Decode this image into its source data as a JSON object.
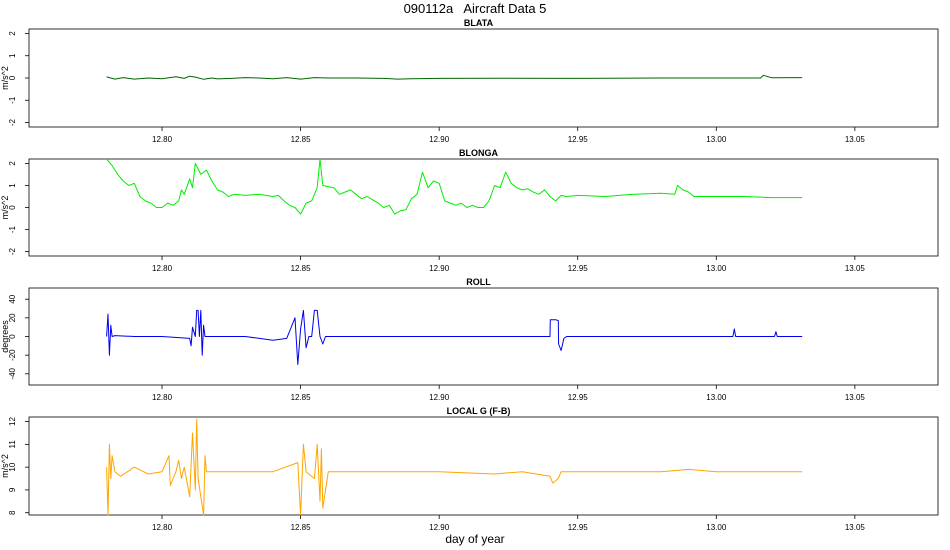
{
  "figure": {
    "title": "090112a   Aircraft Data 5",
    "xlabel": "day of year"
  },
  "chart_data": [
    {
      "type": "line",
      "title": "BLATA",
      "ylabel": "m/s^2",
      "xlim": [
        12.752,
        13.08
      ],
      "ylim": [
        -2.2,
        2.2
      ],
      "xticks": [
        12.8,
        12.85,
        12.9,
        12.95,
        13.0,
        13.05
      ],
      "xtick_labels": [
        "12.80",
        "12.85",
        "12.90",
        "12.95",
        "13.00",
        "13.05"
      ],
      "yticks": [
        -2,
        -1,
        0,
        1,
        2
      ],
      "ytick_labels": [
        "-2",
        "-1",
        "0",
        "1",
        "2"
      ],
      "color": "#006400",
      "series": [
        {
          "x": [
            12.78,
            12.783,
            12.786,
            12.79,
            12.795,
            12.8,
            12.805,
            12.808,
            12.81,
            12.812,
            12.815,
            12.818,
            12.82,
            12.825,
            12.83,
            12.835,
            12.84,
            12.845,
            12.85,
            12.855,
            12.86,
            12.87,
            12.88,
            12.885,
            12.89,
            12.9,
            12.92,
            12.95,
            12.98,
            13.0,
            13.016,
            13.017,
            13.02,
            13.031
          ],
          "y": [
            0.05,
            -0.05,
            0.02,
            -0.05,
            0.0,
            -0.03,
            0.06,
            -0.02,
            0.08,
            0.04,
            -0.06,
            0.0,
            -0.04,
            -0.02,
            0.02,
            0.0,
            -0.03,
            0.02,
            -0.05,
            0.02,
            0.0,
            0.0,
            -0.02,
            -0.05,
            -0.03,
            -0.02,
            -0.01,
            -0.02,
            0.0,
            0.0,
            0.0,
            0.12,
            0.01,
            0.02
          ]
        }
      ]
    },
    {
      "type": "line",
      "title": "BLONGA",
      "ylabel": "m/s^2",
      "xlim": [
        12.752,
        13.08
      ],
      "ylim": [
        -2.2,
        2.2
      ],
      "xticks": [
        12.8,
        12.85,
        12.9,
        12.95,
        13.0,
        13.05
      ],
      "xtick_labels": [
        "12.80",
        "12.85",
        "12.90",
        "12.95",
        "13.00",
        "13.05"
      ],
      "yticks": [
        -2,
        -1,
        0,
        1,
        2
      ],
      "ytick_labels": [
        "-2",
        "-1",
        "0",
        "1",
        "2"
      ],
      "color": "#00ee00",
      "series": [
        {
          "x": [
            12.78,
            12.782,
            12.784,
            12.786,
            12.788,
            12.79,
            12.792,
            12.794,
            12.796,
            12.798,
            12.8,
            12.802,
            12.804,
            12.806,
            12.807,
            12.808,
            12.81,
            12.811,
            12.812,
            12.814,
            12.816,
            12.818,
            12.82,
            12.822,
            12.824,
            12.826,
            12.83,
            12.835,
            12.84,
            12.842,
            12.844,
            12.846,
            12.848,
            12.85,
            12.852,
            12.854,
            12.856,
            12.857,
            12.858,
            12.86,
            12.862,
            12.864,
            12.866,
            12.868,
            12.87,
            12.872,
            12.874,
            12.876,
            12.878,
            12.88,
            12.882,
            12.884,
            12.886,
            12.888,
            12.89,
            12.892,
            12.894,
            12.896,
            12.898,
            12.9,
            12.902,
            12.904,
            12.906,
            12.908,
            12.91,
            12.912,
            12.914,
            12.916,
            12.918,
            12.92,
            12.922,
            12.924,
            12.926,
            12.928,
            12.93,
            12.932,
            12.934,
            12.936,
            12.938,
            12.94,
            12.942,
            12.944,
            12.946,
            12.95,
            12.96,
            12.97,
            12.98,
            12.985,
            12.986,
            12.988,
            12.99,
            12.992,
            12.995,
            13.0,
            13.01,
            13.02,
            13.031
          ],
          "y": [
            2.2,
            1.9,
            1.5,
            1.2,
            1.0,
            1.1,
            0.5,
            0.3,
            0.2,
            0.0,
            0.0,
            0.2,
            0.1,
            0.3,
            0.8,
            0.6,
            1.3,
            0.9,
            2.0,
            1.5,
            1.7,
            1.2,
            0.8,
            0.7,
            0.5,
            0.6,
            0.55,
            0.6,
            0.5,
            0.55,
            0.3,
            0.1,
            0.0,
            -0.3,
            0.2,
            0.3,
            0.9,
            2.2,
            1.0,
            0.95,
            0.9,
            0.6,
            0.7,
            0.8,
            0.6,
            0.4,
            0.5,
            0.35,
            0.2,
            0.0,
            0.1,
            -0.3,
            -0.15,
            -0.1,
            0.4,
            0.6,
            1.6,
            0.9,
            1.2,
            1.1,
            0.3,
            0.2,
            0.1,
            0.2,
            0.0,
            0.1,
            0.0,
            0.0,
            0.3,
            1.0,
            0.9,
            1.6,
            1.1,
            0.9,
            0.8,
            0.85,
            0.7,
            0.6,
            0.8,
            0.5,
            0.3,
            0.55,
            0.5,
            0.55,
            0.5,
            0.6,
            0.65,
            0.6,
            1.0,
            0.8,
            0.7,
            0.5,
            0.5,
            0.5,
            0.5,
            0.45,
            0.45
          ]
        }
      ]
    },
    {
      "type": "line",
      "title": "ROLL",
      "ylabel": "degrees",
      "xlim": [
        12.752,
        13.08
      ],
      "ylim": [
        -52,
        52
      ],
      "xticks": [
        12.8,
        12.85,
        12.9,
        12.95,
        13.0,
        13.05
      ],
      "xtick_labels": [
        "12.80",
        "12.85",
        "12.90",
        "12.95",
        "13.00",
        "13.05"
      ],
      "yticks": [
        -40,
        -20,
        0,
        20,
        40
      ],
      "ytick_labels": [
        "-40",
        "-20",
        "0",
        "20",
        "40"
      ],
      "color": "#0000ee",
      "series": [
        {
          "x": [
            12.78,
            12.7805,
            12.781,
            12.7815,
            12.782,
            12.783,
            12.79,
            12.8,
            12.81,
            12.8105,
            12.811,
            12.812,
            12.8125,
            12.813,
            12.8135,
            12.814,
            12.8145,
            12.815,
            12.8155,
            12.816,
            12.82,
            12.83,
            12.84,
            12.845,
            12.848,
            12.849,
            12.85,
            12.851,
            12.852,
            12.853,
            12.854,
            12.855,
            12.856,
            12.857,
            12.858,
            12.859,
            12.86,
            12.87,
            12.9,
            12.93,
            12.94,
            12.9401,
            12.941,
            12.942,
            12.943,
            12.9431,
            12.944,
            12.945,
            12.946,
            12.95,
            12.98,
            13.0,
            13.006,
            13.0065,
            13.007,
            13.01,
            13.021,
            13.0215,
            13.022,
            13.031
          ],
          "y": [
            0,
            24,
            -20,
            12,
            0,
            1,
            0,
            0,
            -2,
            -10,
            10,
            0,
            28,
            28,
            0,
            28,
            -20,
            12,
            0,
            0,
            0,
            0,
            -4,
            -2,
            20,
            -30,
            8,
            28,
            -12,
            0,
            0,
            28,
            28,
            0,
            -8,
            0,
            0,
            0,
            0,
            0,
            0,
            18,
            18,
            18,
            17,
            -8,
            -15,
            -2,
            0,
            0,
            0,
            0,
            0,
            8,
            0,
            0,
            0,
            5,
            0,
            0
          ]
        }
      ]
    },
    {
      "type": "line",
      "title": "LOCAL G (F-B)",
      "ylabel": "m/s^2",
      "xlim": [
        12.752,
        13.08
      ],
      "ylim": [
        7.9,
        12.2
      ],
      "xticks": [
        12.8,
        12.85,
        12.9,
        12.95,
        13.0,
        13.05
      ],
      "xtick_labels": [
        "12.80",
        "12.85",
        "12.90",
        "12.95",
        "13.00",
        "13.05"
      ],
      "yticks": [
        8,
        9,
        10,
        11,
        12
      ],
      "ytick_labels": [
        "8",
        "9",
        "10",
        "11",
        "12"
      ],
      "color": "#ffa500",
      "series": [
        {
          "x": [
            12.78,
            12.7805,
            12.781,
            12.7815,
            12.782,
            12.783,
            12.785,
            12.79,
            12.795,
            12.8,
            12.8025,
            12.803,
            12.805,
            12.806,
            12.807,
            12.808,
            12.81,
            12.811,
            12.812,
            12.8125,
            12.813,
            12.815,
            12.8155,
            12.816,
            12.82,
            12.83,
            12.84,
            12.849,
            12.85,
            12.851,
            12.852,
            12.855,
            12.856,
            12.857,
            12.8575,
            12.858,
            12.86,
            12.87,
            12.88,
            12.9,
            12.92,
            12.93,
            12.94,
            12.941,
            12.942,
            12.943,
            12.944,
            12.945,
            12.95,
            12.96,
            12.98,
            12.99,
            13.0,
            13.01,
            13.02,
            13.031
          ],
          "y": [
            10.0,
            7.9,
            11.0,
            9.5,
            10.5,
            9.8,
            9.6,
            10.0,
            9.7,
            9.8,
            10.5,
            9.2,
            9.8,
            10.3,
            9.5,
            10.0,
            8.7,
            11.5,
            9.0,
            12.1,
            9.5,
            7.9,
            10.5,
            9.8,
            9.8,
            9.8,
            9.8,
            10.2,
            7.9,
            11.0,
            9.8,
            9.5,
            11.0,
            8.5,
            10.8,
            8.2,
            9.8,
            9.8,
            9.8,
            9.8,
            9.7,
            9.8,
            9.6,
            9.3,
            9.4,
            9.5,
            9.8,
            9.8,
            9.8,
            9.8,
            9.8,
            9.9,
            9.8,
            9.8,
            9.8,
            9.8
          ]
        }
      ]
    }
  ]
}
